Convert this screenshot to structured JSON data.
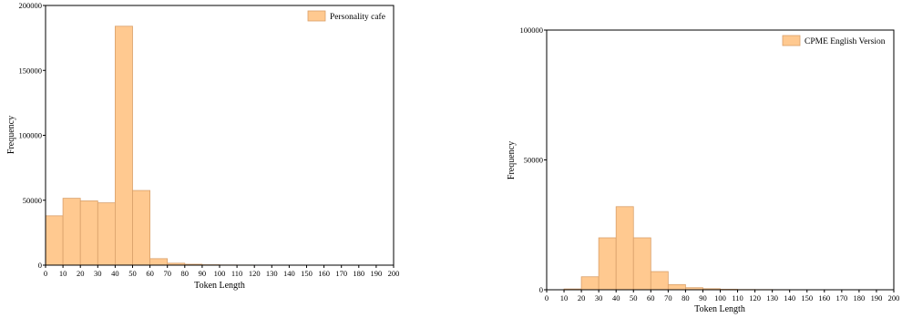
{
  "chart_data": [
    {
      "type": "bar",
      "xlabel": "Token Length",
      "ylabel": "Frequency",
      "legend": {
        "label": "Personality cafe",
        "position": "top-right"
      },
      "bin_width": 10,
      "xlim": [
        0,
        200
      ],
      "x_ticks": [
        "0",
        "10",
        "20",
        "30",
        "40",
        "50",
        "60",
        "70",
        "80",
        "90",
        "100",
        "110",
        "120",
        "130",
        "140",
        "150",
        "160",
        "170",
        "180",
        "190",
        "200"
      ],
      "ylim": [
        0,
        200000
      ],
      "y_ticks": [
        "0",
        "50000",
        "100000",
        "150000",
        "200000"
      ],
      "bins": [
        {
          "start": 0,
          "value": 38000
        },
        {
          "start": 10,
          "value": 51500
        },
        {
          "start": 20,
          "value": 49500
        },
        {
          "start": 30,
          "value": 48000
        },
        {
          "start": 40,
          "value": 184000
        },
        {
          "start": 50,
          "value": 57500
        },
        {
          "start": 60,
          "value": 5000
        },
        {
          "start": 70,
          "value": 1500
        },
        {
          "start": 80,
          "value": 700
        },
        {
          "start": 90,
          "value": 300
        },
        {
          "start": 100,
          "value": 150
        },
        {
          "start": 110,
          "value": 100
        },
        {
          "start": 120,
          "value": 60
        },
        {
          "start": 130,
          "value": 40
        },
        {
          "start": 140,
          "value": 30
        },
        {
          "start": 150,
          "value": 20
        },
        {
          "start": 160,
          "value": 15
        },
        {
          "start": 170,
          "value": 10
        },
        {
          "start": 180,
          "value": 5
        },
        {
          "start": 190,
          "value": 5
        }
      ]
    },
    {
      "type": "bar",
      "xlabel": "Token Length",
      "ylabel": "Frequency",
      "legend": {
        "label": "CPME English Version",
        "position": "top-right"
      },
      "bin_width": 10,
      "xlim": [
        0,
        200
      ],
      "x_ticks": [
        "0",
        "10",
        "20",
        "30",
        "40",
        "50",
        "60",
        "70",
        "80",
        "90",
        "100",
        "110",
        "120",
        "130",
        "140",
        "150",
        "160",
        "170",
        "180",
        "190",
        "200"
      ],
      "ylim": [
        0,
        100000
      ],
      "y_ticks": [
        "0",
        "50000",
        "100000"
      ],
      "bins": [
        {
          "start": 10,
          "value": 300
        },
        {
          "start": 20,
          "value": 5000
        },
        {
          "start": 30,
          "value": 20000
        },
        {
          "start": 40,
          "value": 32000
        },
        {
          "start": 50,
          "value": 20000
        },
        {
          "start": 60,
          "value": 7000
        },
        {
          "start": 70,
          "value": 2000
        },
        {
          "start": 80,
          "value": 800
        },
        {
          "start": 90,
          "value": 400
        },
        {
          "start": 100,
          "value": 200
        },
        {
          "start": 110,
          "value": 100
        },
        {
          "start": 120,
          "value": 80
        },
        {
          "start": 130,
          "value": 50
        },
        {
          "start": 140,
          "value": 30
        },
        {
          "start": 150,
          "value": 20
        },
        {
          "start": 160,
          "value": 15
        },
        {
          "start": 170,
          "value": 10
        },
        {
          "start": 180,
          "value": 5
        },
        {
          "start": 190,
          "value": 5
        }
      ]
    }
  ],
  "colors": {
    "bar_fill": "#ffc990",
    "bar_stroke": "#d9a06a",
    "axis": "#000000"
  }
}
